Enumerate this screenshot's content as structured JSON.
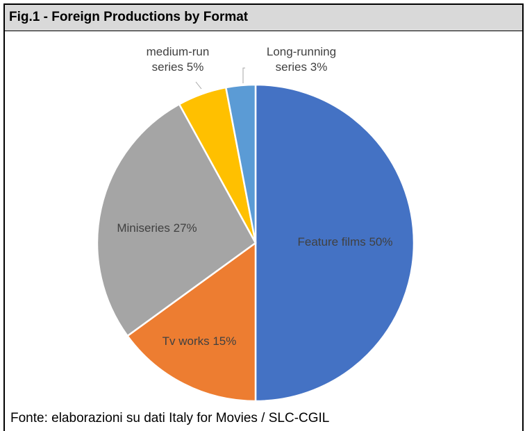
{
  "chart_data": {
    "type": "pie",
    "title": "Fig.1 - Foreign Productions by Format",
    "categories": [
      "Feature films",
      "Tv works",
      "Miniseries",
      "medium-run series",
      "Long-running series"
    ],
    "values": [
      50,
      15,
      27,
      5,
      3
    ],
    "value_labels": [
      "50%",
      "15%",
      "27%",
      "5%",
      "3%"
    ],
    "colors": [
      "#4472c4",
      "#ed7d31",
      "#a5a5a5",
      "#ffc000",
      "#5b9bd5"
    ],
    "source": "Fonte: elaborazioni su dati Italy for Movies / SLC-CGIL"
  }
}
